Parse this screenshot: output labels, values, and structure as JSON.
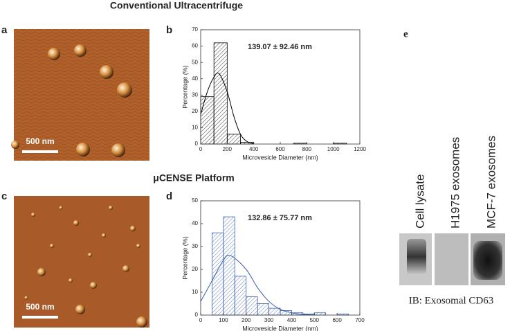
{
  "figure": {
    "title_top": "Conventional Ultracentrifuge",
    "title_bottom": "μCENSE Platform",
    "labels": [
      "a",
      "b",
      "c",
      "d",
      "e"
    ],
    "scale_bars": [
      "500 nm",
      "500 nm"
    ],
    "blot": {
      "lanes": [
        "Cell lysate",
        "H1975 exosomes",
        "MCF-7 exosomes"
      ],
      "caption": "IB: Exosomal CD63"
    }
  },
  "chart_data": [
    {
      "type": "histogram",
      "color": "#000000",
      "xlabel": "Microvesicle Diameter (nm)",
      "ylabel": "Percentage (%)",
      "annotation": "139.07 ± 92.46 nm",
      "bins": [
        0,
        100,
        200,
        300,
        400,
        500,
        600,
        700,
        800,
        900,
        1000,
        1100,
        1200
      ],
      "values": [
        29,
        62,
        6,
        1,
        0,
        0,
        0,
        0.5,
        0,
        0,
        0.5,
        0
      ],
      "fit": {
        "x": [
          0,
          50,
          100,
          140,
          200,
          250,
          300,
          350,
          400
        ],
        "y": [
          18,
          32,
          41,
          43,
          32,
          17,
          6,
          1.5,
          0.3
        ]
      },
      "xlim": [
        0,
        1200
      ],
      "xticks": [
        0,
        200,
        400,
        600,
        800,
        1000,
        1200
      ],
      "ylim": [
        0,
        70
      ],
      "yticks": [
        0,
        10,
        20,
        30,
        40,
        50,
        60,
        70
      ]
    },
    {
      "type": "histogram",
      "color": "#3a5fb0",
      "xlabel": "Microvesicle Diameter (nm)",
      "ylabel": "Percentage (%)",
      "annotation": "132.86 ± 75.77 nm",
      "bins": [
        0,
        50,
        100,
        150,
        200,
        250,
        300,
        350,
        400,
        450,
        500,
        550,
        600,
        650,
        700
      ],
      "values": [
        0,
        36,
        43,
        17,
        8,
        5,
        3,
        2,
        1,
        0.5,
        1,
        0,
        0.5,
        0
      ],
      "fit": {
        "x": [
          0,
          50,
          100,
          132,
          200,
          250,
          300,
          350,
          400,
          450,
          500
        ],
        "y": [
          6,
          15,
          24,
          26,
          20,
          12,
          6,
          2.5,
          1,
          0.3,
          0.1
        ]
      },
      "xlim": [
        0,
        700
      ],
      "xticks": [
        0,
        100,
        200,
        300,
        400,
        500,
        600,
        700
      ],
      "ylim": [
        0,
        50
      ],
      "yticks": [
        0,
        10,
        20,
        30,
        40,
        50
      ]
    }
  ]
}
